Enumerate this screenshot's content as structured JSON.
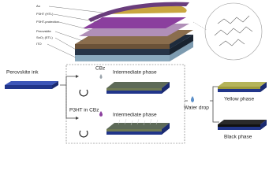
{
  "device_layers": [
    "Au",
    "P3HT (HTL)",
    "P3HT-protection",
    "Perovskite",
    "SnO₂ (ETL)",
    "ITO"
  ],
  "process": {
    "start": "Perovskite ink",
    "solvent_top": "CBz",
    "solvent_bottom": "P3HT in CBz",
    "intermediate_top": "Intermediate phase",
    "intermediate_bottom": "Intermediate phase",
    "treatment": "Water drop",
    "result_top": "Yellow phase",
    "result_bottom": "Black phase"
  }
}
